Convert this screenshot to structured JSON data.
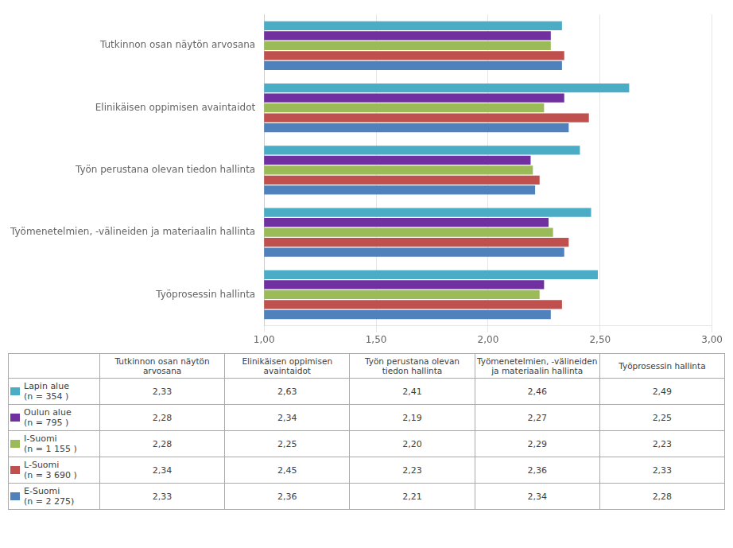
{
  "chart_data": {
    "type": "bar",
    "orientation": "horizontal",
    "categories": [
      "Tutkinnon osan näytön arvosana",
      "Elinikäisen oppimisen avaintaidot",
      "Työn perustana olevan tiedon hallinta",
      "Työmenetelmien, -välineiden ja materiaalin hallinta",
      "Työprosessin hallinta"
    ],
    "series": [
      {
        "name": "Lapin alue\n(n = 354 )",
        "color": "#4bacc6",
        "values": [
          2.33,
          2.63,
          2.41,
          2.46,
          2.49
        ],
        "value_labels": [
          "2,33",
          "2,63",
          "2,41",
          "2,46",
          "2,49"
        ]
      },
      {
        "name": "Oulun alue\n(n = 795 )",
        "color": "#7030a0",
        "values": [
          2.28,
          2.34,
          2.19,
          2.27,
          2.25
        ],
        "value_labels": [
          "2,28",
          "2,34",
          "2,19",
          "2,27",
          "2,25"
        ]
      },
      {
        "name": "I-Suomi\n(n = 1 155 )",
        "color": "#9bbb59",
        "values": [
          2.28,
          2.25,
          2.2,
          2.29,
          2.23
        ],
        "value_labels": [
          "2,28",
          "2,25",
          "2,20",
          "2,29",
          "2,23"
        ]
      },
      {
        "name": "L-Suomi\n(n = 3 690 )",
        "color": "#c0504d",
        "values": [
          2.34,
          2.45,
          2.23,
          2.36,
          2.33
        ],
        "value_labels": [
          "2,34",
          "2,45",
          "2,23",
          "2,36",
          "2,33"
        ]
      },
      {
        "name": "E-Suomi\n(n = 2 275)",
        "color": "#4f81bd",
        "values": [
          2.33,
          2.36,
          2.21,
          2.34,
          2.28
        ],
        "value_labels": [
          "2,33",
          "2,36",
          "2,21",
          "2,34",
          "2,28"
        ]
      }
    ],
    "xlim": [
      1.0,
      3.0
    ],
    "xticks": [
      {
        "value": 1.0,
        "label": "1,00"
      },
      {
        "value": 1.5,
        "label": "1,50"
      },
      {
        "value": 2.0,
        "label": "2,00"
      },
      {
        "value": 2.5,
        "label": "2,50"
      },
      {
        "value": 3.0,
        "label": "3,00"
      }
    ],
    "grid": true,
    "table_headers": [
      "Tutkinnon osan näytön\narvosana",
      "Elinikäisen oppimisen\navaintaidot",
      "Työn perustana olevan\ntiedon hallinta",
      "Työmenetelmien, -välineiden\nja materiaalin hallinta",
      "Työprosessin hallinta"
    ]
  }
}
